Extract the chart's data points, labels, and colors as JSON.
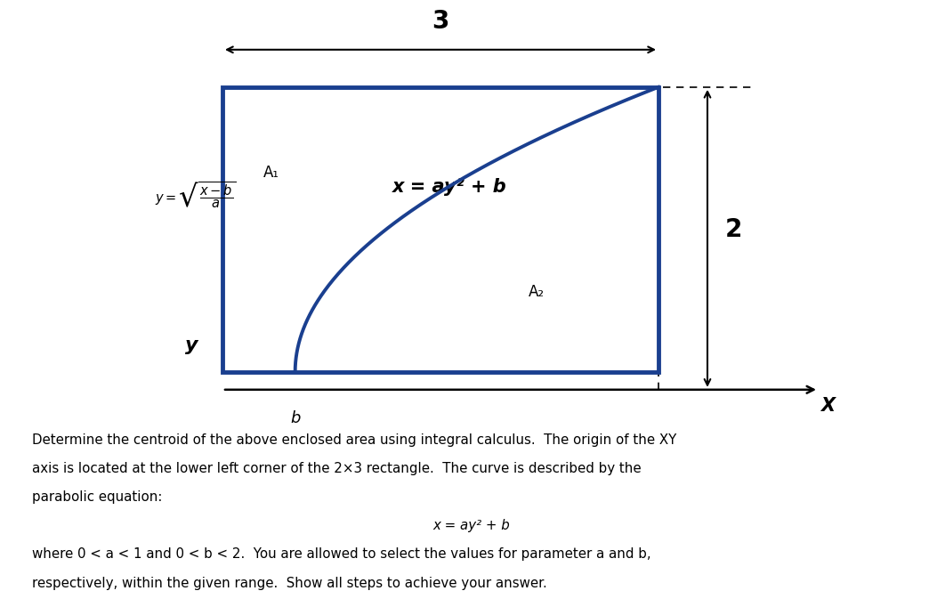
{
  "bg_color": "#ffffff",
  "blue_color": "#1a3f8f",
  "black_color": "#000000",
  "fig_width": 10.24,
  "fig_height": 6.34,
  "dim_3_label": "3",
  "dim_2_label": "2",
  "b_label": "b",
  "x_label": "X",
  "y_label": "y",
  "A1_label": "A₁",
  "A2_label": "A₂",
  "eq_label": "x = ay² + b",
  "text_line1": "Determine the centroid of the above enclosed area using integral calculus.  The origin of the XY",
  "text_line2": "axis is located at the lower left corner of the 2×3 rectangle.  The curve is described by the",
  "text_line3": "parabolic equation:",
  "text_eq_center": "x = ay² + b",
  "text_line4": "where 0 < a < 1 and 0 < b < 2.  You are allowed to select the values for parameter a and b,",
  "text_line5": "respectively, within the given range.  Show all steps to achieve your answer.",
  "parabola_a": 0.625,
  "parabola_b": 0.5
}
